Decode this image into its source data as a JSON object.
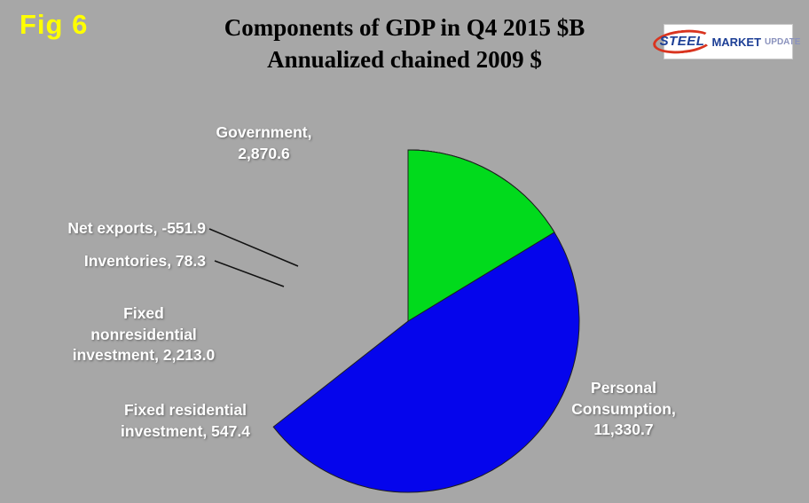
{
  "page": {
    "figure_label": "Fig 6",
    "title_line1": "Components of GDP in Q4 2015 $B",
    "title_line2": "Annualized chained 2009 $"
  },
  "logo": {
    "steel": "STEEL",
    "market": "MARKET",
    "update": "UPDATE"
  },
  "chart_data": {
    "type": "pie",
    "title": "Components of GDP in Q4 2015 $B",
    "subtitle": "Annualized chained 2009 $",
    "unit": "$B, annualized chained 2009 $",
    "start_angle": "12 o'clock",
    "direction": "clockwise",
    "legend_position": "labels around pie",
    "slices": [
      {
        "label": "Personal Consumption",
        "value": 11330.7,
        "color": "#0505ec"
      },
      {
        "label": "Fixed residential investment",
        "value": 547.4,
        "color": "#ff8a88"
      },
      {
        "label": "Fixed nonresidential investment",
        "value": 2213.0,
        "color": "#fcf4cc"
      },
      {
        "label": "Inventories",
        "value": 78.3,
        "color": "#ffffff"
      },
      {
        "label": "Net exports",
        "value": -551.9,
        "color": "#ee0404"
      },
      {
        "label": "Government",
        "value": 2870.6,
        "color": "#01da1c"
      }
    ]
  },
  "labels": {
    "government": "Government,\n2,870.6",
    "net_exports": "Net exports, -551.9",
    "inventories": "Inventories, 78.3",
    "fixed_nonresidential": "Fixed\nnonresidential\ninvestment, 2,213.0",
    "fixed_residential": "Fixed residential\ninvestment, 547.4",
    "personal_consumption": "Personal\nConsumption,\n11,330.7"
  }
}
